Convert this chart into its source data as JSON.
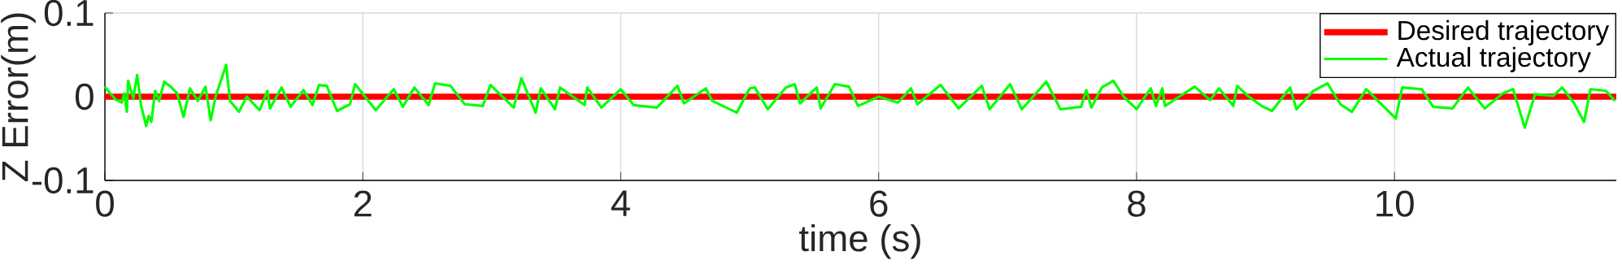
{
  "chart_data": {
    "type": "line",
    "xlabel": "time (s)",
    "ylabel": "Z Error(m)",
    "xlim": [
      0,
      11.72
    ],
    "ylim": [
      -0.1,
      0.1
    ],
    "xticks": [
      0,
      2,
      4,
      6,
      8,
      10
    ],
    "yticks": [
      -0.1,
      0,
      0.1
    ],
    "grid": true,
    "legend": "top right",
    "series": [
      {
        "name": "Desired trajectory",
        "color": "#ff0000",
        "x": [
          0,
          11.72
        ],
        "values": [
          0,
          0
        ]
      },
      {
        "name": "Actual trajectory",
        "color": "#00ff00",
        "x": [
          0,
          0.03,
          0.08,
          0.13,
          0.15,
          0.17,
          0.18,
          0.22,
          0.25,
          0.28,
          0.32,
          0.34,
          0.36,
          0.39,
          0.42,
          0.46,
          0.51,
          0.56,
          0.61,
          0.66,
          0.72,
          0.78,
          0.82,
          0.86,
          0.94,
          0.97,
          1.04,
          1.1,
          1.2,
          1.26,
          1.28,
          1.37,
          1.44,
          1.54,
          1.61,
          1.66,
          1.72,
          1.8,
          1.9,
          1.94,
          2.1,
          2.24,
          2.31,
          2.4,
          2.51,
          2.56,
          2.68,
          2.79,
          2.93,
          2.99,
          3.17,
          3.23,
          3.34,
          3.38,
          3.49,
          3.53,
          3.72,
          3.74,
          3.85,
          4.0,
          4.1,
          4.28,
          4.44,
          4.49,
          4.66,
          4.71,
          4.9,
          5.0,
          5.04,
          5.14,
          5.28,
          5.35,
          5.39,
          5.52,
          5.55,
          5.66,
          5.77,
          5.84,
          6.0,
          6.15,
          6.25,
          6.3,
          6.48,
          6.62,
          6.8,
          6.86,
          7.02,
          7.11,
          7.3,
          7.41,
          7.57,
          7.61,
          7.65,
          7.73,
          7.82,
          7.9,
          8.0,
          8.11,
          8.15,
          8.2,
          8.22,
          8.34,
          8.45,
          8.57,
          8.64,
          8.75,
          8.78,
          8.87,
          8.97,
          9.05,
          9.19,
          9.24,
          9.37,
          9.48,
          9.58,
          9.67,
          9.78,
          10.01,
          10.06,
          10.21,
          10.3,
          10.45,
          10.57,
          10.7,
          10.84,
          10.92,
          11.01,
          11.09,
          11.23,
          11.3,
          11.39,
          11.47,
          11.52,
          11.64,
          11.71
        ],
        "values": [
          0.012,
          0.006,
          -0.003,
          -0.007,
          0.004,
          -0.018,
          0.019,
          -0.002,
          0.026,
          -0.01,
          -0.035,
          -0.023,
          -0.03,
          0.007,
          -0.005,
          0.018,
          0.012,
          0.004,
          -0.024,
          0.01,
          -0.005,
          0.012,
          -0.028,
          0.001,
          0.038,
          -0.005,
          -0.018,
          0,
          -0.016,
          0.007,
          -0.014,
          0.011,
          -0.012,
          0.008,
          -0.01,
          0.014,
          0.013,
          -0.017,
          -0.009,
          0.015,
          -0.016,
          0.009,
          -0.012,
          0.011,
          -0.01,
          0.016,
          0.013,
          -0.009,
          -0.011,
          0.014,
          -0.013,
          0.022,
          -0.019,
          0.01,
          -0.015,
          0.011,
          -0.01,
          0.011,
          -0.013,
          0.009,
          -0.01,
          -0.013,
          0.013,
          -0.008,
          0.01,
          -0.005,
          -0.019,
          0.01,
          0.011,
          -0.015,
          0.011,
          0.015,
          -0.008,
          0.011,
          -0.014,
          0.015,
          0.012,
          -0.011,
          0,
          -0.007,
          0.01,
          -0.009,
          0.014,
          -0.014,
          0.013,
          -0.015,
          0.015,
          -0.015,
          0.018,
          -0.015,
          -0.012,
          0.008,
          -0.013,
          0.011,
          0.019,
          0,
          -0.015,
          0.01,
          -0.011,
          0.01,
          -0.011,
          0.001,
          0.012,
          -0.004,
          0.01,
          -0.011,
          0.013,
          0,
          -0.011,
          -0.017,
          0.011,
          -0.015,
          0.007,
          0.016,
          -0.009,
          -0.018,
          0.009,
          -0.026,
          0.011,
          0.009,
          -0.012,
          -0.014,
          0.011,
          -0.014,
          0.004,
          0.009,
          -0.037,
          0.003,
          0.001,
          0.011,
          -0.007,
          -0.03,
          0.009,
          0.007,
          -0.005
        ]
      }
    ]
  }
}
